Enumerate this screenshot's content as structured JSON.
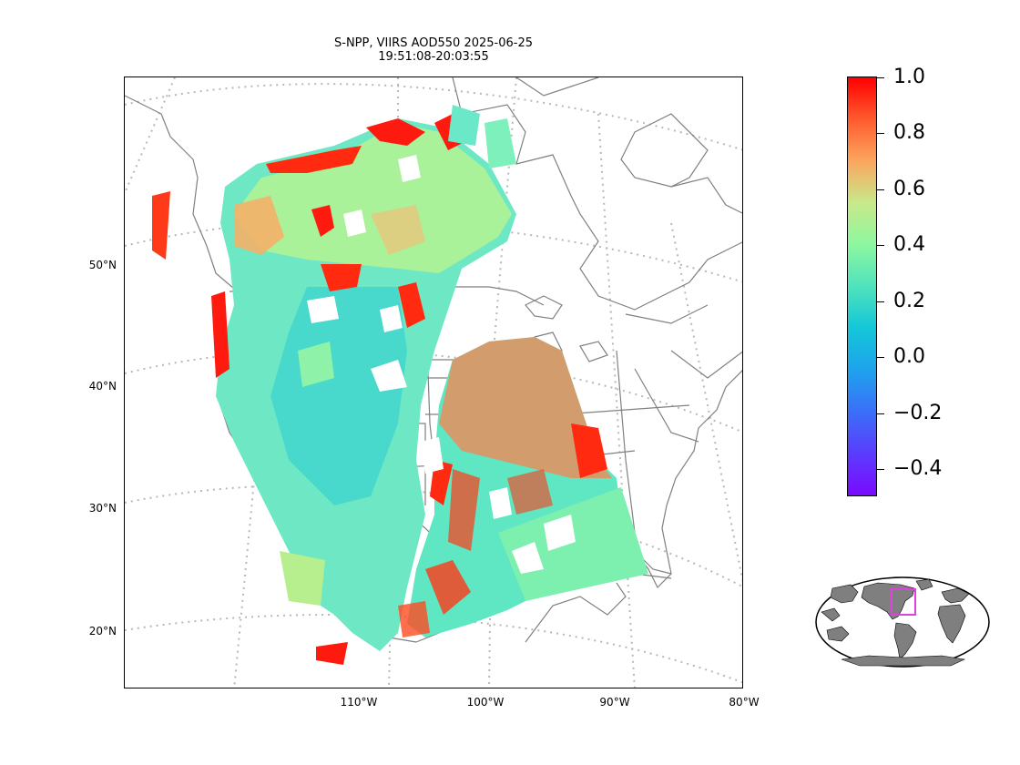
{
  "title": {
    "line1": "S-NPP, VIIRS AOD550 2025-06-25",
    "line2": "19:51:08-20:03:55"
  },
  "map": {
    "lat_labels": [
      "50°N",
      "40°N",
      "30°N",
      "20°N"
    ],
    "lon_labels": [
      "110°W",
      "100°W",
      "90°W",
      "80°W"
    ],
    "graticule": "dotted gray",
    "coastline_color": "#808080"
  },
  "colorbar": {
    "colormap": "rainbow",
    "range": [
      -0.5,
      1.0
    ],
    "tick_labels": [
      "1.0",
      "0.8",
      "0.6",
      "0.4",
      "0.2",
      "0.0",
      "−0.2",
      "−0.4"
    ],
    "colors": {
      "high": "#ff0000",
      "mid": "#80ffb4",
      "low": "#8000ff"
    }
  },
  "inset": {
    "type": "globe overview",
    "box_color": "#e040e0",
    "land_color": "#7f7f7f"
  }
}
